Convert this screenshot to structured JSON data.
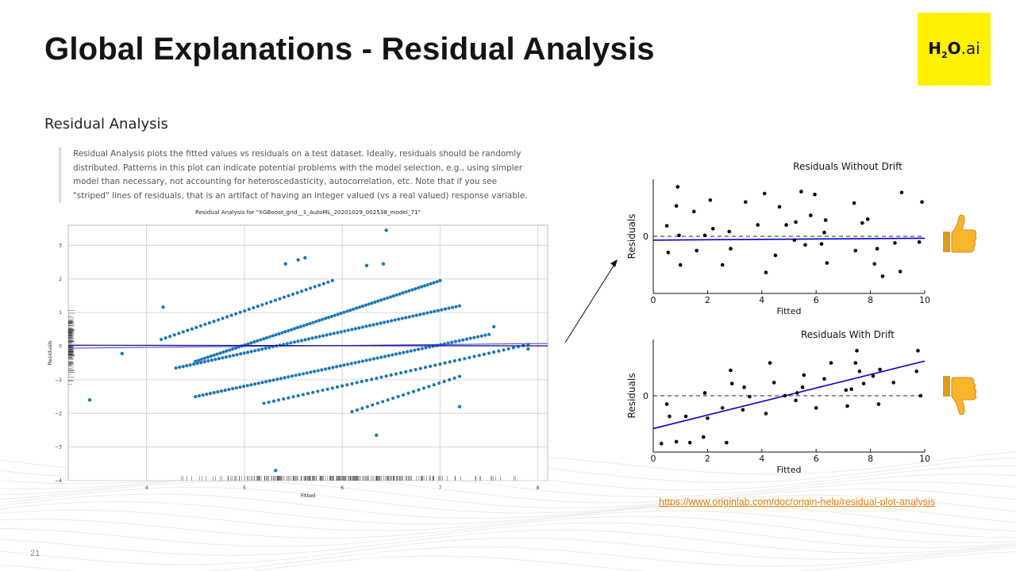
{
  "slide": {
    "title": "Global Explanations - Residual Analysis",
    "page_number": "21",
    "source_link": "https://www.originlab.com/doc/origin-help/residual-plot-analysis"
  },
  "logo": {
    "h": "H",
    "sub": "2",
    "o": "O",
    "ai": ".ai",
    "background": "#fef200"
  },
  "section": {
    "heading": "Residual Analysis",
    "description": "Residual Analysis plots the fitted values vs residuals on a test dataset. Ideally, residuals should be randomly distributed. Patterns in this plot can indicate potential problems with the model selection, e.g., using simpler model than necessary, not accounting for heteroscedasticity, autocorrelation, etc. Note that if you see \"striped\" lines of residuals, that is an artifact of having an integer valued (vs a real valued) response variable."
  },
  "icons": {
    "up": "thumbs-up-icon",
    "down": "thumbs-down-icon",
    "arrow": "arrow-icon"
  },
  "colors": {
    "scatter": "#1f77b4",
    "fit_line": "#0000cc",
    "accent_yellow": "#fef200",
    "link": "#e3800a"
  },
  "chart_data": [
    {
      "type": "scatter",
      "title": "Residual Analysis for \"XGBoost_grid__1_AutoML_20201029_002538_model_71\"",
      "xlabel": "Fitted",
      "ylabel": "Residuals",
      "xlim": [
        3.2,
        8.1
      ],
      "ylim": [
        -4.0,
        3.6
      ],
      "xticks": [
        4,
        5,
        6,
        7,
        8
      ],
      "yticks": [
        -4,
        -3,
        -2,
        -1,
        0,
        1,
        2,
        3
      ],
      "grid": true,
      "stripes": [
        {
          "from": [
            4.15,
            0.2
          ],
          "to": [
            5.9,
            1.95
          ],
          "n": 40
        },
        {
          "from": [
            4.3,
            -0.65
          ],
          "to": [
            7.2,
            1.2
          ],
          "n": 80
        },
        {
          "from": [
            4.5,
            -0.45
          ],
          "to": [
            7.0,
            1.95
          ],
          "n": 80
        },
        {
          "from": [
            4.5,
            -1.5
          ],
          "to": [
            7.5,
            0.35
          ],
          "n": 80
        },
        {
          "from": [
            5.2,
            -1.7
          ],
          "to": [
            7.9,
            0.05
          ],
          "n": 55
        },
        {
          "from": [
            6.1,
            -1.95
          ],
          "to": [
            7.2,
            -0.9
          ],
          "n": 22
        }
      ],
      "outliers": [
        {
          "x": 3.42,
          "y": -1.6
        },
        {
          "x": 3.75,
          "y": -0.22
        },
        {
          "x": 4.17,
          "y": 1.16
        },
        {
          "x": 5.42,
          "y": 2.45
        },
        {
          "x": 5.55,
          "y": 2.57
        },
        {
          "x": 5.62,
          "y": 2.63
        },
        {
          "x": 6.25,
          "y": 2.4
        },
        {
          "x": 6.42,
          "y": 2.45
        },
        {
          "x": 6.45,
          "y": 3.45
        },
        {
          "x": 6.35,
          "y": -2.65
        },
        {
          "x": 5.32,
          "y": -3.7
        },
        {
          "x": 7.55,
          "y": 0.58
        },
        {
          "x": 7.2,
          "y": -1.8
        },
        {
          "x": 7.9,
          "y": -0.08
        }
      ],
      "fit_lines": [
        {
          "from": [
            3.2,
            -0.06
          ],
          "to": [
            8.1,
            0.08
          ]
        },
        {
          "from": [
            3.2,
            0.03
          ],
          "to": [
            8.1,
            0.01
          ]
        }
      ]
    },
    {
      "type": "scatter",
      "title": "Residuals Without Drift",
      "xlabel": "Fitted",
      "ylabel": "Residuals",
      "xlim": [
        0,
        10
      ],
      "ylim": [
        -3,
        3
      ],
      "xticks": [
        0,
        2,
        4,
        6,
        8,
        10
      ],
      "yticks": [
        0
      ],
      "x": [
        0.5,
        0.55,
        0.85,
        0.9,
        0.95,
        1.0,
        1.5,
        1.6,
        1.9,
        2.1,
        2.2,
        2.55,
        2.8,
        2.85,
        3.4,
        3.85,
        4.1,
        4.15,
        4.5,
        4.65,
        4.9,
        5.2,
        5.25,
        5.45,
        5.6,
        5.8,
        5.95,
        6.2,
        6.3,
        6.35,
        6.4,
        7.4,
        7.45,
        7.7,
        7.9,
        8.15,
        8.25,
        8.45,
        8.9,
        9.1,
        9.15,
        9.8,
        9.9
      ],
      "y": [
        0.55,
        -0.85,
        1.6,
        2.6,
        0.05,
        -1.5,
        1.3,
        -0.75,
        0.05,
        1.9,
        0.4,
        -1.5,
        0.25,
        -0.65,
        1.8,
        0.6,
        2.25,
        -1.9,
        -1.0,
        1.55,
        0.6,
        -0.2,
        0.75,
        2.35,
        -0.45,
        1.1,
        2.2,
        -0.4,
        0.2,
        0.85,
        -1.4,
        1.75,
        -0.75,
        0.7,
        0.9,
        -1.45,
        -0.65,
        -2.1,
        -0.35,
        -1.85,
        2.3,
        -0.3,
        1.8
      ],
      "fit_line": {
        "from": [
          0,
          -0.2
        ],
        "to": [
          10,
          -0.1
        ]
      },
      "zero_line": 0
    },
    {
      "type": "scatter",
      "title": "Residuals With Drift",
      "xlabel": "Fitted",
      "ylabel": "Residuals",
      "xlim": [
        0,
        10
      ],
      "ylim": [
        -3,
        3
      ],
      "xticks": [
        0,
        2,
        4,
        6,
        8,
        10
      ],
      "yticks": [
        0
      ],
      "x": [
        0.3,
        0.5,
        0.6,
        0.85,
        1.2,
        1.35,
        1.85,
        1.9,
        2.0,
        2.55,
        2.7,
        2.85,
        2.9,
        3.3,
        3.35,
        3.55,
        4.15,
        4.3,
        4.45,
        4.85,
        5.25,
        5.3,
        5.5,
        5.55,
        6.0,
        6.3,
        6.55,
        7.1,
        7.15,
        7.3,
        7.45,
        7.5,
        7.6,
        7.75,
        8.1,
        8.3,
        8.35,
        8.85,
        9.7,
        9.75,
        9.85
      ],
      "y": [
        -2.55,
        -0.45,
        -1.1,
        -2.45,
        -1.1,
        -2.5,
        -2.2,
        0.15,
        -1.2,
        -0.65,
        -2.5,
        1.35,
        0.65,
        -0.75,
        0.45,
        -0.05,
        -0.95,
        1.75,
        0.7,
        0.0,
        -0.25,
        0.15,
        0.45,
        1.1,
        -0.65,
        0.9,
        1.75,
        0.3,
        -0.55,
        0.35,
        1.75,
        2.4,
        1.3,
        0.65,
        1.05,
        -0.45,
        1.4,
        0.7,
        1.3,
        2.4,
        0.0
      ],
      "fit_line": {
        "from": [
          0,
          -1.75
        ],
        "to": [
          10,
          1.85
        ]
      },
      "zero_line": 0
    }
  ]
}
